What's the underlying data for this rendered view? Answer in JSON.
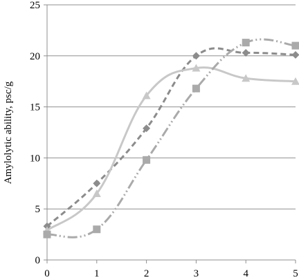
{
  "chart_data": {
    "type": "line",
    "title": "",
    "xlabel": "",
    "ylabel": "Amylolytic ability, psc/g",
    "x": [
      0,
      1,
      2,
      3,
      4,
      5
    ],
    "xticks": [
      "0",
      "1",
      "2",
      "3",
      "4",
      "5"
    ],
    "yticks": [
      "0",
      "5",
      "10",
      "15",
      "20",
      "25"
    ],
    "xlim": [
      0,
      5
    ],
    "ylim": [
      0,
      25
    ],
    "grid": "horizontal",
    "legend": "none",
    "series": [
      {
        "marker": "diamond",
        "line_style": "dashed",
        "color": "#8c8c8c",
        "values": [
          3.3,
          7.5,
          12.9,
          20.0,
          20.3,
          20.1
        ]
      },
      {
        "marker": "triangle",
        "line_style": "solid",
        "color": "#c8c8c8",
        "values": [
          2.9,
          6.5,
          16.1,
          18.8,
          17.8,
          17.5
        ]
      },
      {
        "marker": "square",
        "line_style": "dash-dot-dot",
        "color": "#aaaaaa",
        "values": [
          2.5,
          3.0,
          9.8,
          16.8,
          21.3,
          21.0
        ]
      }
    ]
  }
}
